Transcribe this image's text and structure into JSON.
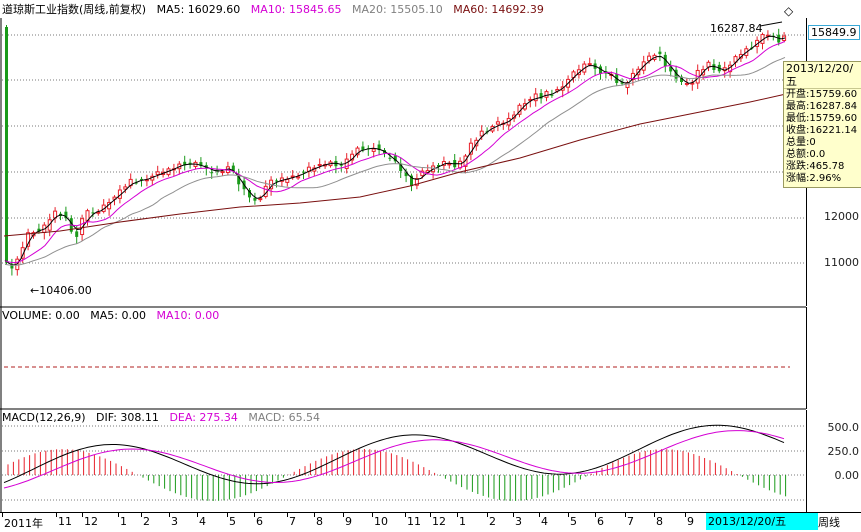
{
  "legend_main": {
    "title": "道琼斯工业指数(周线,前复权)",
    "ma5": "MA5: 16029.60",
    "ma10": "MA10: 15845.65",
    "ma20": "MA20: 15505.10",
    "ma60": "MA60: 14692.39"
  },
  "legend_volume": {
    "volume": "VOLUME: 0.00",
    "ma5": "MA5: 0.00",
    "ma10": "MA10: 0.00"
  },
  "legend_macd": {
    "title": "MACD(12,26,9)",
    "dif": "DIF: 308.11",
    "dea": "DEA: 275.34",
    "macd": "MACD: 65.54"
  },
  "annotations": {
    "high": "16287.84",
    "low": "←10406.00",
    "current_price": "15849.9",
    "diamond": "◇"
  },
  "price_axis": [
    "12000",
    "11000"
  ],
  "macd_axis": [
    "500.0",
    "250.0",
    "0.00"
  ],
  "info": {
    "date": "2013/12/20/五",
    "rows": [
      {
        "label": "开盘:",
        "value": "15759.60"
      },
      {
        "label": "最高:",
        "value": "16287.84"
      },
      {
        "label": "最低:",
        "value": "15759.60"
      },
      {
        "label": "收盘:",
        "value": "16221.14"
      },
      {
        "label": "总量:",
        "value": "0"
      },
      {
        "label": "总额:",
        "value": "0.0"
      },
      {
        "label": "涨跌:",
        "value": "465.78"
      },
      {
        "label": "涨幅:",
        "value": "2.96%"
      }
    ]
  },
  "time_axis": [
    "2011年",
    "11",
    "12",
    "1",
    "2",
    "3",
    "4",
    "5",
    "6",
    "7",
    "8",
    "9",
    "10",
    "11",
    "12",
    "1",
    "2",
    "3",
    "4",
    "5",
    "6",
    "7",
    "8",
    "9"
  ],
  "cursor_date": "2013/12/20/五",
  "period": "周线",
  "colors": {
    "up": "#e8202a",
    "down": "#1a9a1a",
    "ma5": "#000000",
    "ma10": "#d400d4",
    "ma20": "#909090",
    "ma60": "#7a1010",
    "grid": "#7a7a7a"
  }
}
